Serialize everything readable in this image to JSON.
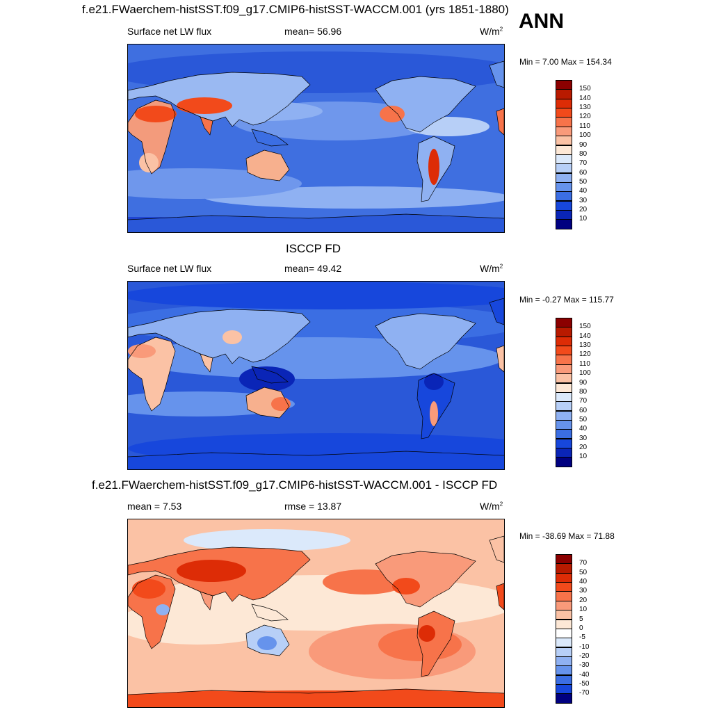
{
  "header": {
    "title": "f.e21.FWaerchem-histSST.f09_g17.CMIP6-histSST-WACCM.001 (yrs 1851-1880)",
    "season": "ANN"
  },
  "panels": [
    {
      "id": "model",
      "title": "",
      "left_text": "Surface net LW flux",
      "center_text": "mean=  56.96",
      "units": "W/m",
      "units_sup": "2",
      "minmax": "Min =   7.00 Max = 154.34",
      "colorbar": {
        "labels": [
          "150",
          "140",
          "130",
          "120",
          "110",
          "100",
          "90",
          "80",
          "70",
          "60",
          "50",
          "40",
          "30",
          "20",
          "10"
        ],
        "colors": [
          "#8b0000",
          "#b81a00",
          "#dd2c06",
          "#f24a1b",
          "#f7734a",
          "#f99a7a",
          "#fbc2a5",
          "#fde8d6",
          "#dbe9fb",
          "#b7cff7",
          "#8fb1f2",
          "#6693ec",
          "#3b6ee3",
          "#1747dc",
          "#0a25b7",
          "#000080"
        ]
      },
      "style": "model"
    },
    {
      "id": "obs",
      "title": "ISCCP FD",
      "left_text": "Surface net LW flux",
      "center_text": "mean=  49.42",
      "units": "W/m",
      "units_sup": "2",
      "minmax": "Min =  -0.27 Max = 115.77",
      "colorbar": {
        "labels": [
          "150",
          "140",
          "130",
          "120",
          "110",
          "100",
          "90",
          "80",
          "70",
          "60",
          "50",
          "40",
          "30",
          "20",
          "10"
        ],
        "colors": [
          "#8b0000",
          "#b81a00",
          "#dd2c06",
          "#f24a1b",
          "#f7734a",
          "#f99a7a",
          "#fbc2a5",
          "#fde8d6",
          "#dbe9fb",
          "#b7cff7",
          "#8fb1f2",
          "#6693ec",
          "#3b6ee3",
          "#1747dc",
          "#0a25b7",
          "#000080"
        ]
      },
      "style": "obs"
    },
    {
      "id": "diff",
      "title": "f.e21.FWaerchem-histSST.f09_g17.CMIP6-histSST-WACCM.001 - ISCCP FD",
      "left_text": "mean =   7.53",
      "center_text": "rmse =  13.87",
      "units": "W/m",
      "units_sup": "2",
      "minmax": "Min = -38.69 Max =  71.88",
      "colorbar": {
        "labels": [
          "70",
          "50",
          "40",
          "30",
          "20",
          "10",
          "5",
          "0",
          "-5",
          "-10",
          "-20",
          "-30",
          "-40",
          "-50",
          "-70"
        ],
        "colors": [
          "#8b0000",
          "#b81a00",
          "#dd2c06",
          "#f24a1b",
          "#f7734a",
          "#f99a7a",
          "#fbc2a5",
          "#fde8d6",
          "#ffffff",
          "#dbe9fb",
          "#b7cff7",
          "#8fb1f2",
          "#6693ec",
          "#3b6ee3",
          "#1747dc",
          "#000080"
        ]
      },
      "style": "diff"
    }
  ]
}
